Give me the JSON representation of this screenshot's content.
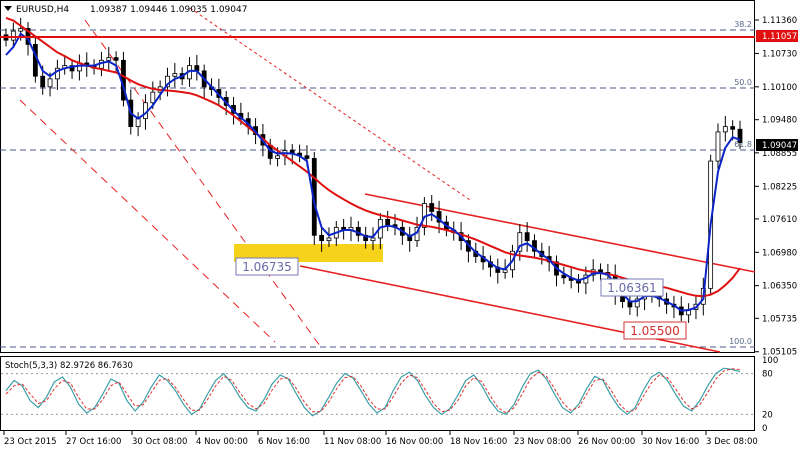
{
  "header": {
    "symbol": "EURUSD,H4",
    "ohlc": "1.09387 1.09446 1.09035 1.09047"
  },
  "indicator": {
    "label": "Stoch(5,3,3) 82.9726 86.7630",
    "ticks": [
      "100",
      "80",
      "20",
      "0"
    ],
    "levels": [
      80,
      20
    ],
    "main_values": [
      55,
      70,
      62,
      40,
      30,
      45,
      68,
      75,
      60,
      35,
      22,
      30,
      50,
      72,
      66,
      40,
      25,
      38,
      60,
      78,
      70,
      55,
      35,
      20,
      28,
      50,
      70,
      80,
      65,
      45,
      30,
      25,
      42,
      65,
      78,
      72,
      50,
      30,
      18,
      25,
      45,
      66,
      80,
      74,
      55,
      35,
      22,
      30,
      55,
      75,
      82,
      70,
      48,
      30,
      20,
      28,
      48,
      70,
      78,
      62,
      40,
      25,
      20,
      35,
      60,
      80,
      85,
      72,
      50,
      30,
      22,
      35,
      58,
      76,
      70,
      48,
      30,
      20,
      30,
      55,
      75,
      82,
      70,
      50,
      32,
      25,
      40,
      62,
      80,
      88,
      86,
      83
    ],
    "signal_values": [
      50,
      62,
      65,
      50,
      36,
      40,
      58,
      70,
      66,
      45,
      28,
      28,
      42,
      62,
      68,
      50,
      32,
      34,
      52,
      70,
      73,
      60,
      42,
      26,
      26,
      42,
      62,
      76,
      70,
      52,
      36,
      28,
      36,
      56,
      72,
      74,
      58,
      38,
      24,
      24,
      38,
      58,
      74,
      76,
      62,
      42,
      28,
      28,
      46,
      66,
      78,
      74,
      56,
      36,
      24,
      26,
      40,
      62,
      74,
      68,
      48,
      30,
      22,
      30,
      50,
      72,
      82,
      76,
      58,
      38,
      26,
      30,
      50,
      70,
      72,
      56,
      36,
      24,
      26,
      46,
      66,
      78,
      74,
      58,
      40,
      28,
      34,
      52,
      72,
      84,
      87,
      86
    ]
  },
  "annotations": {
    "box_low_label": "1.06735",
    "mid_label": "1.06361",
    "low_label": "1.05500",
    "fib_labels": [
      "38.2",
      "50.0",
      "61.8",
      "100.0"
    ],
    "price_tag_red": "1.11057",
    "price_tag_current": "1.09047"
  },
  "colors": {
    "candles": "#000000",
    "fast_ma": "#0a24c8",
    "slow_ma": "#e01010",
    "channel": "#e82020",
    "fib_line": "#4a5a8a",
    "highlight_box": "#f7d21a",
    "stoch_main": "#3aa0a8",
    "stoch_signal": "#e03030"
  },
  "chart_data": {
    "type": "candlestick",
    "title": "EURUSD,H4",
    "ylim": [
      1.051,
      1.1136
    ],
    "y_ticks": [
      "1.11360",
      "1.10730",
      "1.10100",
      "1.09480",
      "1.08855",
      "1.08225",
      "1.07610",
      "1.06980",
      "1.06350",
      "1.05735",
      "1.05105"
    ],
    "x_ticks": [
      "23 Oct 2015",
      "27 Oct 16:00",
      "30 Oct 08:00",
      "4 Nov 00:00",
      "6 Nov 16:00",
      "11 Nov 08:00",
      "16 Nov 00:00",
      "18 Nov 16:00",
      "23 Nov 08:00",
      "26 Nov 00:00",
      "30 Nov 16:00",
      "3 Dec 08:00"
    ],
    "close": [
      1.1098,
      1.1115,
      1.112,
      1.109,
      1.103,
      1.101,
      1.1025,
      1.1045,
      1.105,
      1.104,
      1.1055,
      1.105,
      1.1045,
      1.106,
      1.1065,
      1.106,
      1.0985,
      1.0935,
      1.095,
      1.098,
      1.1,
      1.101,
      1.103,
      1.1035,
      1.1025,
      1.105,
      1.104,
      1.101,
      1.1005,
      1.099,
      1.0975,
      1.096,
      1.095,
      1.0935,
      1.092,
      1.09,
      1.0875,
      1.088,
      1.089,
      1.0885,
      1.088,
      1.0875,
      1.073,
      1.072,
      1.0725,
      1.0745,
      1.074,
      1.0745,
      1.073,
      1.072,
      1.0725,
      1.076,
      1.075,
      1.0745,
      1.073,
      1.072,
      1.0745,
      1.079,
      1.0775,
      1.0755,
      1.074,
      1.0735,
      1.072,
      1.07,
      1.069,
      1.068,
      1.067,
      1.066,
      1.0665,
      1.07,
      1.0735,
      1.072,
      1.07,
      1.069,
      1.068,
      1.0655,
      1.065,
      1.0645,
      1.064,
      1.0655,
      1.0665,
      1.066,
      1.0655,
      1.062,
      1.0605,
      1.0595,
      1.061,
      1.0625,
      1.0615,
      1.061,
      1.06,
      1.0595,
      1.058,
      1.059,
      1.06,
      1.063,
      1.087,
      1.0925,
      1.0935,
      1.093,
      1.0905
    ],
    "fast_ma": [
      1.107,
      1.1085,
      1.111,
      1.11,
      1.107,
      1.104,
      1.103,
      1.104,
      1.1045,
      1.1048,
      1.105,
      1.105,
      1.105,
      1.1055,
      1.1058,
      1.105,
      1.101,
      1.096,
      1.095,
      1.096,
      1.0975,
      1.0995,
      1.1015,
      1.1025,
      1.103,
      1.104,
      1.104,
      1.1025,
      1.101,
      1.0995,
      1.098,
      1.0965,
      1.0952,
      1.094,
      1.0925,
      1.0908,
      1.089,
      1.0884,
      1.0885,
      1.0884,
      1.088,
      1.087,
      1.079,
      1.0745,
      1.073,
      1.0735,
      1.074,
      1.074,
      1.0735,
      1.0728,
      1.0727,
      1.0745,
      1.0748,
      1.0746,
      1.0738,
      1.0728,
      1.0735,
      1.0765,
      1.077,
      1.076,
      1.0748,
      1.074,
      1.0728,
      1.0712,
      1.0698,
      1.0688,
      1.0678,
      1.0668,
      1.0666,
      1.0682,
      1.071,
      1.0715,
      1.0705,
      1.0694,
      1.0684,
      1.0668,
      1.0658,
      1.065,
      1.0645,
      1.065,
      1.0658,
      1.0659,
      1.0656,
      1.0638,
      1.062,
      1.0605,
      1.0606,
      1.0615,
      1.0616,
      1.0612,
      1.0605,
      1.0598,
      1.0588,
      1.0589,
      1.0594,
      1.061,
      1.075,
      1.085,
      1.0895,
      1.0915,
      1.091
    ],
    "slow_ma": [
      1.114,
      1.1135,
      1.1125,
      1.1115,
      1.1105,
      1.1095,
      1.1085,
      1.1075,
      1.1068,
      1.106,
      1.1055,
      1.105,
      1.1046,
      1.1043,
      1.104,
      1.1037,
      1.103,
      1.1022,
      1.1015,
      1.101,
      1.1006,
      1.1004,
      1.1003,
      1.1002,
      1.1,
      1.0998,
      1.0994,
      1.0988,
      1.0982,
      1.0975,
      1.0966,
      1.0956,
      1.0945,
      1.0934,
      1.0923,
      1.0912,
      1.09,
      1.089,
      1.088,
      1.087,
      1.086,
      1.085,
      1.0838,
      1.0826,
      1.0815,
      1.0806,
      1.0798,
      1.079,
      1.0783,
      1.0777,
      1.0772,
      1.0768,
      1.0765,
      1.0762,
      1.0758,
      1.0754,
      1.075,
      1.0748,
      1.0746,
      1.0743,
      1.074,
      1.0736,
      1.0732,
      1.0727,
      1.0722,
      1.0716,
      1.071,
      1.0704,
      1.0698,
      1.0694,
      1.0692,
      1.069,
      1.0688,
      1.0685,
      1.0682,
      1.0678,
      1.0674,
      1.067,
      1.0666,
      1.0663,
      1.0661,
      1.0659,
      1.0657,
      1.0654,
      1.065,
      1.0646,
      1.0643,
      1.064,
      1.0637,
      1.0634,
      1.0631,
      1.0627,
      1.0623,
      1.0619,
      1.0616,
      1.0615,
      1.0618,
      1.0625,
      1.0636,
      1.065,
      1.0668
    ]
  }
}
